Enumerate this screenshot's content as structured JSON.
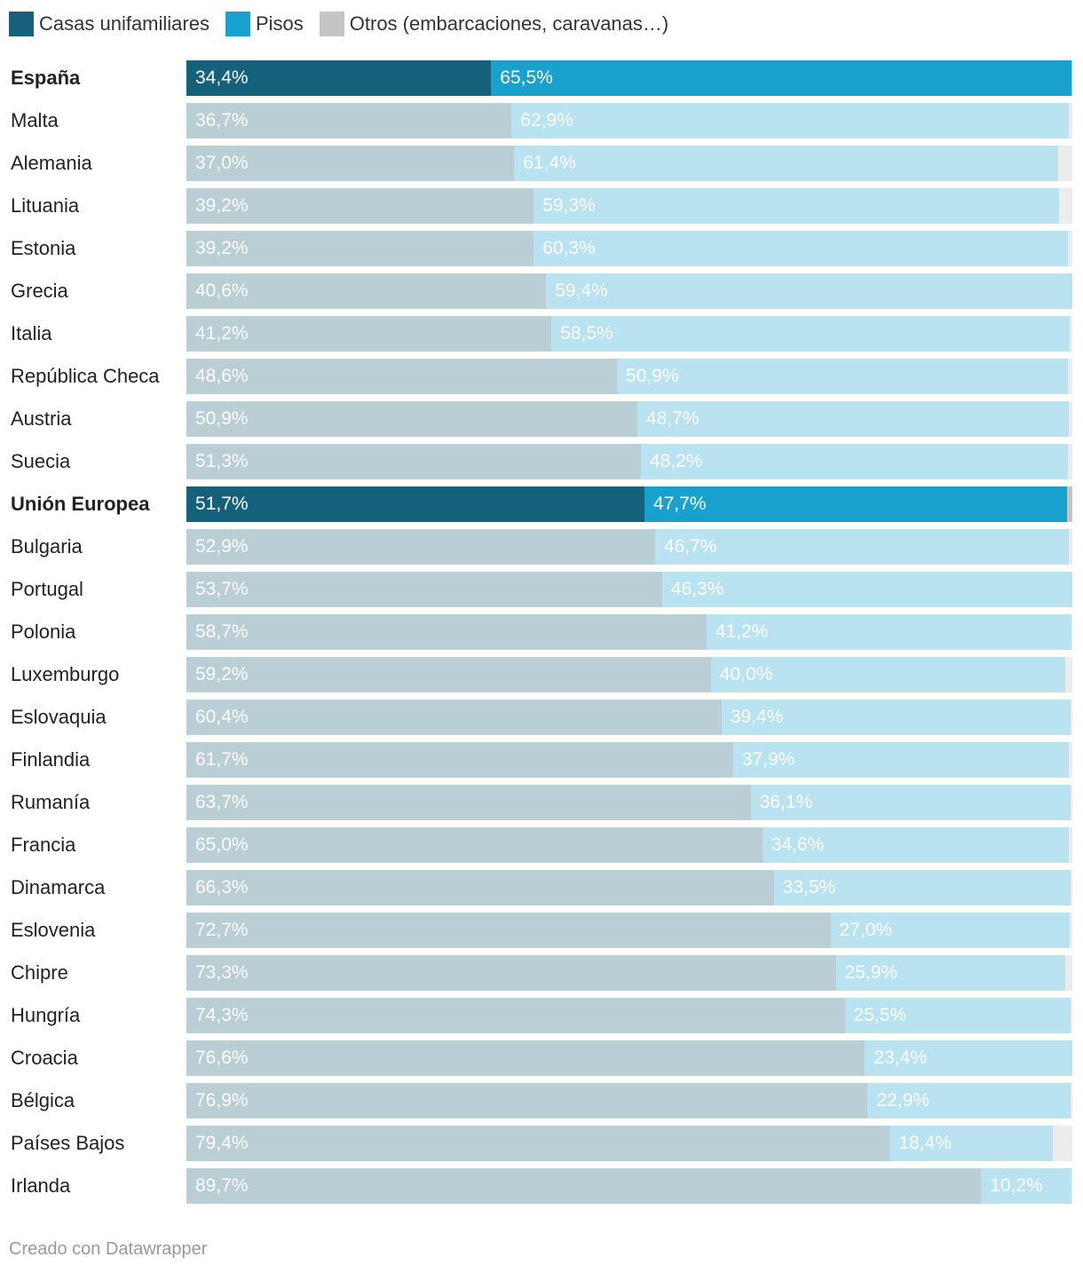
{
  "colors": {
    "casas": "#15607a",
    "pisos": "#18a1cd",
    "otros": "#c4c4c4",
    "casas_muted": "#b9ced5",
    "pisos_muted": "#b9e3f0",
    "otros_muted": "#ececec"
  },
  "legend": [
    {
      "label": "Casas unifamiliares",
      "color": "#15607a"
    },
    {
      "label": "Pisos",
      "color": "#18a1cd"
    },
    {
      "label": "Otros (embarcaciones, caravanas…)",
      "color": "#c4c4c4"
    }
  ],
  "footer": "Creado con Datawrapper",
  "chart_data": {
    "type": "bar",
    "orientation": "horizontal",
    "stacked": true,
    "xlim": [
      0,
      100
    ],
    "series": [
      {
        "name": "Casas unifamiliares"
      },
      {
        "name": "Pisos"
      },
      {
        "name": "Otros (embarcaciones, caravanas…)"
      }
    ],
    "rows": [
      {
        "country": "España",
        "highlight": true,
        "casas": 34.4,
        "casas_label": "34,4%",
        "pisos": 65.5,
        "pisos_label": "65,5%"
      },
      {
        "country": "Malta",
        "highlight": false,
        "casas": 36.7,
        "casas_label": "36,7%",
        "pisos": 62.9,
        "pisos_label": "62,9%"
      },
      {
        "country": "Alemania",
        "highlight": false,
        "casas": 37.0,
        "casas_label": "37,0%",
        "pisos": 61.4,
        "pisos_label": "61,4%"
      },
      {
        "country": "Lituania",
        "highlight": false,
        "casas": 39.2,
        "casas_label": "39,2%",
        "pisos": 59.3,
        "pisos_label": "59,3%"
      },
      {
        "country": "Estonia",
        "highlight": false,
        "casas": 39.2,
        "casas_label": "39,2%",
        "pisos": 60.3,
        "pisos_label": "60,3%"
      },
      {
        "country": "Grecia",
        "highlight": false,
        "casas": 40.6,
        "casas_label": "40,6%",
        "pisos": 59.4,
        "pisos_label": "59,4%"
      },
      {
        "country": "Italia",
        "highlight": false,
        "casas": 41.2,
        "casas_label": "41,2%",
        "pisos": 58.5,
        "pisos_label": "58,5%"
      },
      {
        "country": "República Checa",
        "highlight": false,
        "casas": 48.6,
        "casas_label": "48,6%",
        "pisos": 50.9,
        "pisos_label": "50,9%"
      },
      {
        "country": "Austria",
        "highlight": false,
        "casas": 50.9,
        "casas_label": "50,9%",
        "pisos": 48.7,
        "pisos_label": "48,7%"
      },
      {
        "country": "Suecia",
        "highlight": false,
        "casas": 51.3,
        "casas_label": "51,3%",
        "pisos": 48.2,
        "pisos_label": "48,2%"
      },
      {
        "country": "Unión Europea",
        "highlight": true,
        "casas": 51.7,
        "casas_label": "51,7%",
        "pisos": 47.7,
        "pisos_label": "47,7%"
      },
      {
        "country": "Bulgaria",
        "highlight": false,
        "casas": 52.9,
        "casas_label": "52,9%",
        "pisos": 46.7,
        "pisos_label": "46,7%"
      },
      {
        "country": "Portugal",
        "highlight": false,
        "casas": 53.7,
        "casas_label": "53,7%",
        "pisos": 46.3,
        "pisos_label": "46,3%"
      },
      {
        "country": "Polonia",
        "highlight": false,
        "casas": 58.7,
        "casas_label": "58,7%",
        "pisos": 41.2,
        "pisos_label": "41,2%"
      },
      {
        "country": "Luxemburgo",
        "highlight": false,
        "casas": 59.2,
        "casas_label": "59,2%",
        "pisos": 40.0,
        "pisos_label": "40,0%"
      },
      {
        "country": "Eslovaquia",
        "highlight": false,
        "casas": 60.4,
        "casas_label": "60,4%",
        "pisos": 39.4,
        "pisos_label": "39,4%"
      },
      {
        "country": "Finlandia",
        "highlight": false,
        "casas": 61.7,
        "casas_label": "61,7%",
        "pisos": 37.9,
        "pisos_label": "37,9%"
      },
      {
        "country": "Rumanía",
        "highlight": false,
        "casas": 63.7,
        "casas_label": "63,7%",
        "pisos": 36.1,
        "pisos_label": "36,1%"
      },
      {
        "country": "Francia",
        "highlight": false,
        "casas": 65.0,
        "casas_label": "65,0%",
        "pisos": 34.6,
        "pisos_label": "34,6%"
      },
      {
        "country": "Dinamarca",
        "highlight": false,
        "casas": 66.3,
        "casas_label": "66,3%",
        "pisos": 33.5,
        "pisos_label": "33,5%"
      },
      {
        "country": "Eslovenia",
        "highlight": false,
        "casas": 72.7,
        "casas_label": "72,7%",
        "pisos": 27.0,
        "pisos_label": "27,0%"
      },
      {
        "country": "Chipre",
        "highlight": false,
        "casas": 73.3,
        "casas_label": "73,3%",
        "pisos": 25.9,
        "pisos_label": "25,9%"
      },
      {
        "country": "Hungría",
        "highlight": false,
        "casas": 74.3,
        "casas_label": "74,3%",
        "pisos": 25.5,
        "pisos_label": "25,5%"
      },
      {
        "country": "Croacia",
        "highlight": false,
        "casas": 76.6,
        "casas_label": "76,6%",
        "pisos": 23.4,
        "pisos_label": "23,4%"
      },
      {
        "country": "Bélgica",
        "highlight": false,
        "casas": 76.9,
        "casas_label": "76,9%",
        "pisos": 22.9,
        "pisos_label": "22,9%"
      },
      {
        "country": "Países Bajos",
        "highlight": false,
        "casas": 79.4,
        "casas_label": "79,4%",
        "pisos": 18.4,
        "pisos_label": "18,4%"
      },
      {
        "country": "Irlanda",
        "highlight": false,
        "casas": 89.7,
        "casas_label": "89,7%",
        "pisos": 10.2,
        "pisos_label": "10,2%"
      }
    ]
  }
}
